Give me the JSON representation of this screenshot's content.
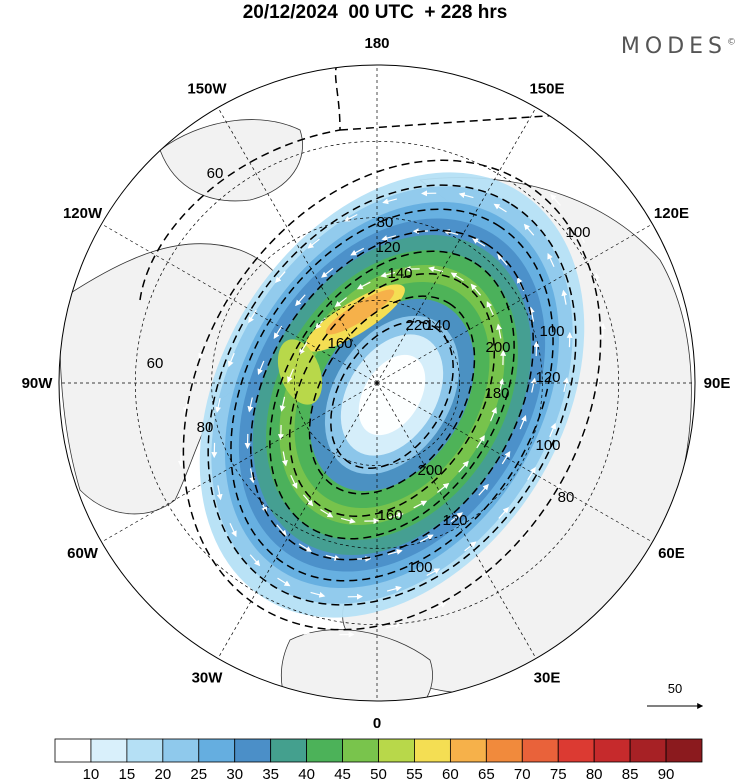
{
  "header": {
    "title": "20/12/2024  00 UTC  + 228 hrs",
    "logo": "MODES",
    "logo_mark": "©"
  },
  "map": {
    "projection": "north-polar-stereographic",
    "longitude_labels": [
      {
        "text": "180",
        "lon": 180
      },
      {
        "text": "150E",
        "lon": 150
      },
      {
        "text": "120E",
        "lon": 120
      },
      {
        "text": "90E",
        "lon": 90
      },
      {
        "text": "60E",
        "lon": 60
      },
      {
        "text": "30E",
        "lon": 30
      },
      {
        "text": "0",
        "lon": 0
      },
      {
        "text": "30W",
        "lon": -30
      },
      {
        "text": "60W",
        "lon": -60
      },
      {
        "text": "90W",
        "lon": -90
      },
      {
        "text": "120W",
        "lon": -120
      },
      {
        "text": "150W",
        "lon": -150
      }
    ],
    "contour_labels": [
      "60",
      "60",
      "80",
      "80",
      "100",
      "100",
      "100",
      "120",
      "120",
      "140",
      "160",
      "160",
      "180",
      "200",
      "200",
      "220",
      "80",
      "100",
      "120",
      "140"
    ],
    "colors": {
      "land": "#f2f2f2",
      "ocean": "#ffffff",
      "coast": "#222222",
      "vector": "#ffffff"
    }
  },
  "vector_reference": {
    "label": "50"
  },
  "colorbar": {
    "labels": [
      "10",
      "15",
      "20",
      "25",
      "30",
      "35",
      "40",
      "45",
      "50",
      "55",
      "60",
      "65",
      "70",
      "75",
      "80",
      "85",
      "90"
    ],
    "colors": [
      "#ffffff",
      "#d9f0fb",
      "#b5e0f5",
      "#8fc9ec",
      "#65aee0",
      "#4b8fc8",
      "#44a08e",
      "#4cb259",
      "#79c44c",
      "#b8d84a",
      "#f4de53",
      "#f6b14a",
      "#f18a3c",
      "#e9623a",
      "#dc3a32",
      "#c62a2c",
      "#a72125",
      "#8b1a1e"
    ]
  }
}
